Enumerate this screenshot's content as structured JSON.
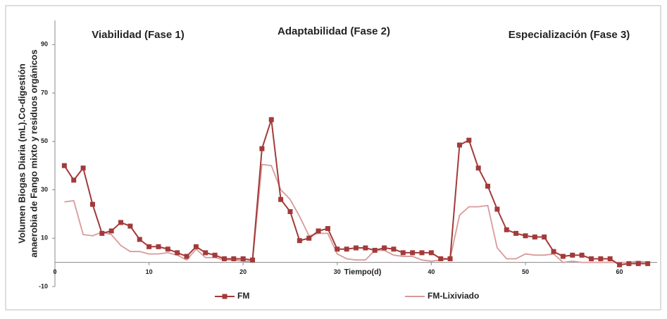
{
  "chart_data": {
    "type": "line",
    "ylabel": [
      "Volumen Biogas Diaria (mL).Co-digestión",
      "anaerobia de Fango mixto y residuos orgánicos"
    ],
    "xlabel": "Tiempo(d)",
    "annotations": [
      "Viabilidad (Fase 1)",
      "Adaptabilidad (Fase 2)",
      "Especialización (Fase 3)"
    ],
    "x": [
      1,
      2,
      3,
      4,
      5,
      6,
      7,
      8,
      9,
      10,
      11,
      12,
      13,
      14,
      15,
      16,
      17,
      18,
      19,
      20,
      21,
      22,
      23,
      24,
      25,
      26,
      27,
      28,
      29,
      30,
      31,
      32,
      33,
      34,
      35,
      36,
      37,
      38,
      39,
      40,
      41,
      42,
      43,
      44,
      45,
      46,
      47,
      48,
      49,
      50,
      51,
      52,
      53,
      54,
      55,
      56,
      57,
      58,
      59,
      60,
      61,
      62,
      63
    ],
    "series": [
      {
        "name": "FM",
        "color": "#a33a3a",
        "marker": "square",
        "values": [
          40,
          34,
          39,
          24,
          12,
          13,
          16.5,
          15,
          9.5,
          6.5,
          6.5,
          5.5,
          4,
          2.5,
          6.5,
          4,
          3,
          1.5,
          1.5,
          1.5,
          1,
          47,
          59,
          26,
          21,
          9,
          10,
          13,
          14,
          5.5,
          5.5,
          6,
          6,
          5,
          6,
          5.5,
          4,
          4,
          4,
          4,
          1.5,
          1.5,
          48.5,
          50.5,
          39,
          31.5,
          22,
          13.5,
          12,
          11,
          10.5,
          10.5,
          4.5,
          2.5,
          3,
          3,
          1.5,
          1.5,
          1.5,
          -1,
          -0.5,
          -0.5,
          -0.5
        ]
      },
      {
        "name": "FM-Lixiviado",
        "color": "#d89a9a",
        "marker": "none",
        "values": [
          25,
          25.5,
          11.5,
          11,
          12.5,
          11.5,
          7,
          4.5,
          4.5,
          3.5,
          3.5,
          4,
          3,
          1,
          5.5,
          2,
          2,
          1,
          1,
          0.5,
          0.5,
          40.5,
          40,
          30,
          26,
          19,
          11,
          12,
          12,
          3.5,
          1.5,
          1,
          1,
          5,
          5,
          3,
          2.5,
          2.5,
          1,
          0.5,
          1,
          1.5,
          19.5,
          23,
          23,
          23.5,
          6,
          1.5,
          1.5,
          3.5,
          3,
          3,
          3.5,
          0,
          0.5,
          0,
          0,
          0,
          0,
          0,
          0,
          0.5,
          0
        ]
      }
    ],
    "xlim": [
      0,
      64
    ],
    "xticks": [
      0,
      10,
      20,
      30,
      40,
      50,
      60
    ],
    "ylim": [
      -10,
      100
    ],
    "yticks": [
      -10,
      10,
      30,
      50,
      70,
      90
    ],
    "grid": false,
    "legend": "bottom"
  }
}
